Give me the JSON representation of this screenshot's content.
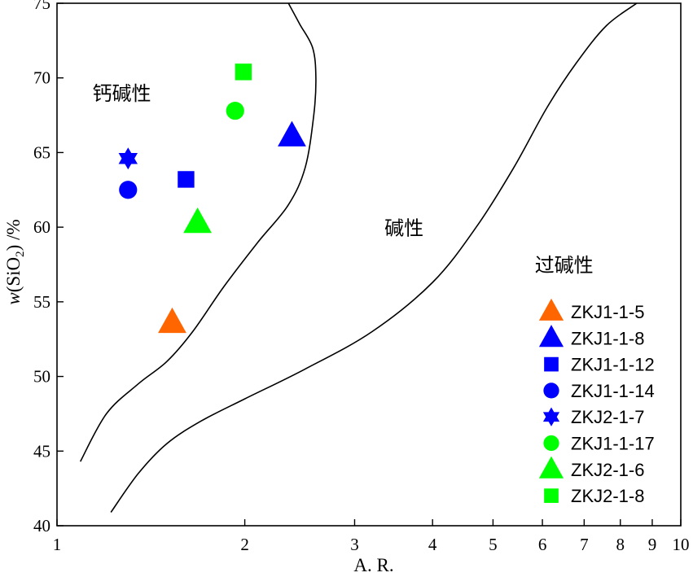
{
  "chart_data": {
    "type": "scatter",
    "title": "",
    "xlabel": "A. R.",
    "ylabel_parts": {
      "italic": "w",
      "open": "(SiO",
      "sub": "2",
      "close": ") /%"
    },
    "x_scale": "log",
    "xlim": [
      1,
      10
    ],
    "ylim": [
      40,
      75
    ],
    "x_ticks": [
      1,
      2,
      3,
      4,
      5,
      6,
      7,
      8,
      9,
      10
    ],
    "y_ticks": [
      40,
      45,
      50,
      55,
      60,
      65,
      70,
      75
    ],
    "grid": false,
    "legend_position": "bottom-right",
    "field_labels": [
      {
        "text": "钙碱性",
        "x": 1.27,
        "y": 68.5
      },
      {
        "text": "碱性",
        "x": 3.6,
        "y": 59.5
      },
      {
        "text": "过碱性",
        "x": 6.5,
        "y": 57
      },
      {
        "text": "",
        "x": 1,
        "y": 40
      }
    ],
    "boundaries": [
      {
        "points": [
          [
            1.09,
            44.3
          ],
          [
            1.2,
            47.5
          ],
          [
            1.35,
            49.5
          ],
          [
            1.5,
            51
          ],
          [
            1.65,
            53
          ],
          [
            1.85,
            56
          ],
          [
            2.1,
            59
          ],
          [
            2.35,
            61.5
          ],
          [
            2.5,
            64
          ],
          [
            2.58,
            67.5
          ],
          [
            2.6,
            70
          ],
          [
            2.57,
            72
          ],
          [
            2.45,
            73.6
          ],
          [
            2.35,
            75
          ]
        ]
      },
      {
        "points": [
          [
            1.22,
            40.9
          ],
          [
            1.35,
            43.5
          ],
          [
            1.5,
            45.5
          ],
          [
            1.7,
            47
          ],
          [
            2,
            48.5
          ],
          [
            2.5,
            50.5
          ],
          [
            3.2,
            53
          ],
          [
            4,
            56.3
          ],
          [
            4.7,
            60
          ],
          [
            5.4,
            64
          ],
          [
            6.1,
            68
          ],
          [
            6.8,
            71
          ],
          [
            7.6,
            73.5
          ],
          [
            8.5,
            75
          ]
        ]
      }
    ],
    "series": [
      {
        "name": "ZKJ1-1-5",
        "marker": "triangle",
        "color": "#FF6600",
        "x": [
          1.53
        ],
        "y": [
          53.6
        ]
      },
      {
        "name": "ZKJ1-1-8",
        "marker": "triangle",
        "color": "#0000FF",
        "x": [
          2.38
        ],
        "y": [
          66.1
        ]
      },
      {
        "name": "ZKJ1-1-12",
        "marker": "square",
        "color": "#0000FF",
        "x": [
          1.61
        ],
        "y": [
          63.2
        ]
      },
      {
        "name": "ZKJ1-1-14",
        "marker": "circle",
        "color": "#0000FF",
        "x": [
          1.3
        ],
        "y": [
          62.5
        ]
      },
      {
        "name": "ZKJ2-1-7",
        "marker": "star",
        "color": "#0000FF",
        "x": [
          1.3
        ],
        "y": [
          64.6
        ]
      },
      {
        "name": "ZKJ1-1-17",
        "marker": "circle",
        "color": "#00FF00",
        "x": [
          1.93
        ],
        "y": [
          67.8
        ]
      },
      {
        "name": "ZKJ2-1-6",
        "marker": "triangle",
        "color": "#00FF00",
        "x": [
          1.68
        ],
        "y": [
          60.3
        ]
      },
      {
        "name": "ZKJ2-1-8",
        "marker": "square",
        "color": "#00FF00",
        "x": [
          1.99
        ],
        "y": [
          70.4
        ]
      }
    ]
  }
}
